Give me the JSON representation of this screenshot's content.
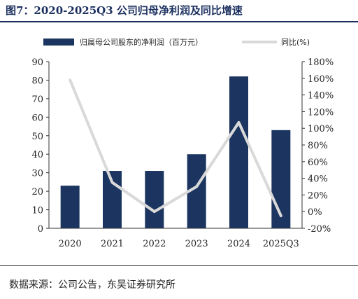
{
  "title": "图7：2020-2025Q3 公司归母净利润及同比增速",
  "source": "数据来源：公司公告，东吴证券研究所",
  "colors": {
    "bar": "#1b3560",
    "line": "#d9d9d9",
    "title": "#1b2f5e"
  },
  "chart_data": {
    "type": "bar",
    "categories": [
      "2020",
      "2021",
      "2022",
      "2023",
      "2024",
      "2025Q3"
    ],
    "series": [
      {
        "name": "归属母公司股东的净利润（百万元）",
        "type": "bar",
        "axis": "left",
        "values": [
          23,
          31,
          31,
          40,
          82,
          53
        ]
      },
      {
        "name": "同比(%)",
        "type": "line",
        "axis": "right",
        "values": [
          158,
          35,
          0,
          30,
          107,
          -5
        ]
      }
    ],
    "left_axis": {
      "ylim": [
        0,
        90
      ],
      "ticks": [
        "0",
        "10",
        "20",
        "30",
        "40",
        "50",
        "60",
        "70",
        "80",
        "90"
      ]
    },
    "right_axis": {
      "ylim": [
        -20,
        180
      ],
      "ticks": [
        "-20%",
        "0%",
        "20%",
        "40%",
        "60%",
        "80%",
        "100%",
        "120%",
        "140%",
        "160%",
        "180%"
      ]
    },
    "legend_position": "top",
    "grid": false
  }
}
